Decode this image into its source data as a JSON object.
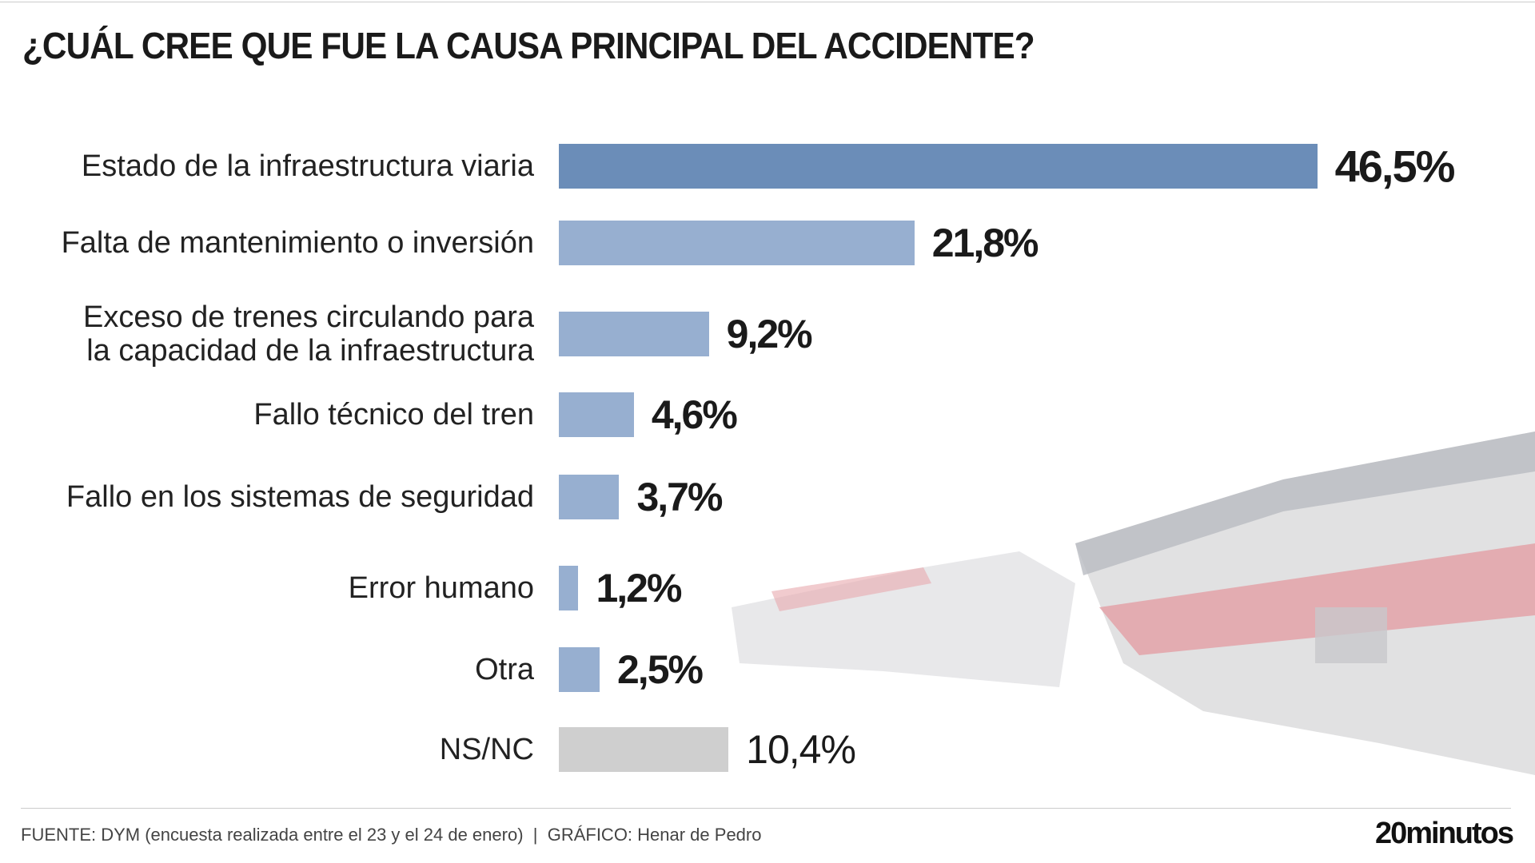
{
  "chart_data": {
    "type": "bar",
    "orientation": "horizontal",
    "title": "¿CUÁL CREE QUE FUE LA CAUSA PRINCIPAL DEL ACCIDENTE?",
    "categories": [
      "Estado de la infraestructura viaria",
      "Falta de mantenimiento o inversión",
      "Exceso de trenes circulando para\nla capacidad de la infraestructura",
      "Fallo técnico del tren",
      "Fallo en los sistemas de seguridad",
      "Error humano",
      "Otra",
      "NS/NC"
    ],
    "values": [
      46.5,
      21.8,
      9.2,
      4.6,
      3.7,
      1.2,
      2.5,
      10.4
    ],
    "value_labels": [
      "46,5%",
      "21,8%",
      "9,2%",
      "4,6%",
      "3,7%",
      "1,2%",
      "2,5%",
      "10,4%"
    ],
    "colors": [
      "#6b8db8",
      "#97afd0",
      "#97afd0",
      "#97afd0",
      "#97afd0",
      "#97afd0",
      "#97afd0",
      "#cfcfcf"
    ],
    "bold_labels": [
      true,
      true,
      true,
      true,
      true,
      true,
      true,
      false
    ],
    "source": "FUENTE: DYM (encuesta realizada entre el 23 y el 24 de enero)",
    "credit": "GRÁFICO: Henar de Pedro",
    "logo": "20minutos"
  }
}
